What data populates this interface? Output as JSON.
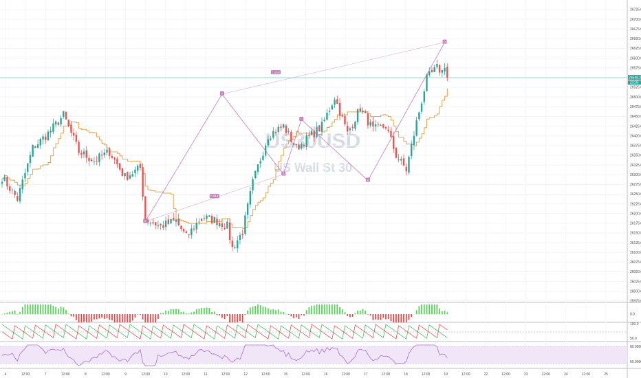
{
  "watermark": {
    "symbol": "US30USD",
    "subtitle": "US Wall St 30"
  },
  "price": {
    "last": "26548.3",
    "countdown": "23:05"
  },
  "colors": {
    "up": "#26a69a",
    "down": "#ef5350",
    "ma": "#e0a44a",
    "pattern": "#c47ab8",
    "macd_up": "#5ad15a",
    "macd_down": "#e54a4a",
    "rsi_band": "#f1e6f8",
    "rsi_line": "#9c5cc9",
    "aroon_up": "#33b84a",
    "aroon_down": "#e53e3e"
  },
  "chart_data": {
    "type": "candlestick",
    "y_range": [
      25950,
      26750
    ],
    "y_ticks": [
      "26725.0",
      "26700.0",
      "26675.0",
      "26650.0",
      "26625.0",
      "26600.0",
      "26575.0",
      "26550.0",
      "26525.0",
      "26500.0",
      "26475.0",
      "26450.0",
      "26425.0",
      "26400.0",
      "26375.0",
      "26350.0",
      "26325.0",
      "26300.0",
      "26275.0",
      "26250.0",
      "26225.0",
      "26200.0",
      "26175.0",
      "26150.0",
      "26125.0",
      "26100.0",
      "26075.0",
      "26050.0",
      "26025.0",
      "26000.0",
      "25975.0"
    ],
    "x_ticks": [
      "4",
      "12:00",
      "7",
      "12:00",
      "8",
      "12:00",
      "9",
      "12:00",
      "10",
      "12:00",
      "11",
      "12:00",
      "12",
      "12:00",
      "15",
      "12:00",
      "16",
      "12:00",
      "17",
      "12:00",
      "18",
      "12:00",
      "19",
      "12:00",
      "22",
      "12:00",
      "23",
      "12:00",
      "24",
      "12:00",
      "25"
    ],
    "pattern_points": [
      {
        "label": "X",
        "x": 56,
        "y": 26153
      },
      {
        "label": "A",
        "x": 86,
        "y": 26503
      },
      {
        "label": "B",
        "x": 110,
        "y": 26283
      },
      {
        "label": "C",
        "x": 117,
        "y": 26433
      },
      {
        "label": "D",
        "x": 143,
        "y": 26266
      },
      {
        "label": "D",
        "x": 173,
        "y": 26645
      }
    ],
    "ratios": [
      {
        "text": "0.618",
        "x": 83,
        "y": 26222
      },
      {
        "text": "1.618",
        "x": 107,
        "y": 26562
      }
    ],
    "indicators": {
      "macd_ticks": [
        "0.0"
      ],
      "aroon_ticks": [
        "100.0",
        "50.0"
      ],
      "rsi_ticks": [
        "80.0000",
        "60.0000"
      ]
    }
  }
}
